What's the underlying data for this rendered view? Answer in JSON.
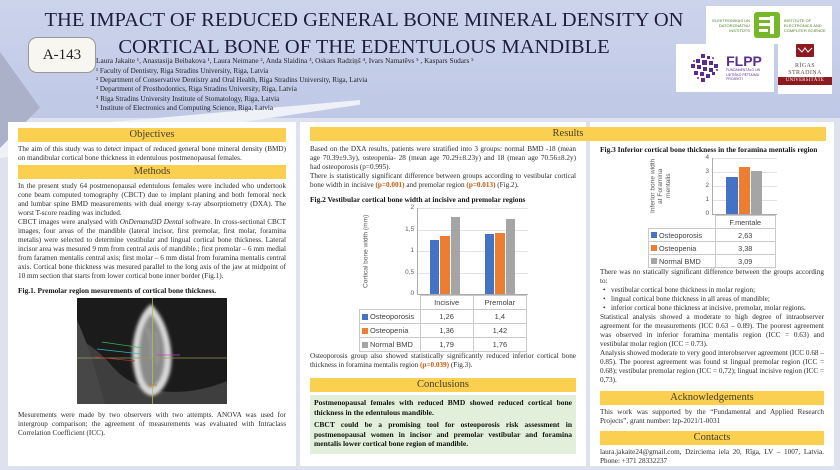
{
  "header": {
    "badge": "A-143",
    "title_line1": "THE IMPACT OF REDUCED GENERAL BONE MINERAL DENSITY ON",
    "title_line2": "CORTICAL BONE OF THE EDENTULOUS MANDIBLE",
    "authors": "Laura Jakaite ¹, Anastasija Beibakova ¹, Laura Neimane ², Anda Slaidina ³, Oskars Radziņš ⁴, Ivars Namatēvs ⁵ , Kaspars Sudars ⁵",
    "affiliations": [
      "¹ Faculty of Dentistry, Riga Stradins University, Riga, Latvia",
      "² Department of Conservative Dentistry and Oral Health, Riga Stradins University, Riga, Latvia",
      "³ Department of Prosthodontics, Riga Stradins University, Riga, Latvia",
      "⁴ Riga Stradins University Institute of Stomatology, Riga, Latvia",
      "⁵ Institute of Electronics and Computing Science, Riga, Latvia"
    ],
    "logos": {
      "edi_left": [
        "ELEKTRONIKAS UN",
        "DATORZINĀTŅU",
        "INSTITŪTS"
      ],
      "edi_right": [
        "INSTITUTE OF",
        "ELECTRONICS AND",
        "COMPUTER SCIENCE"
      ],
      "flpp": "FLPP",
      "flpp_sub": [
        "FUNDAMENTĀLO UN",
        "LIETIŠĶO PĒTĪJUMU",
        "PROJEKTI"
      ],
      "rsu": [
        "RĪGAS",
        "STRADIŅA",
        "UNIVERSITĀTE"
      ]
    }
  },
  "sections": {
    "objectives": "Objectives",
    "methods": "Methods",
    "results": "Results",
    "conclusions": "Conclusions",
    "acknowledgements": "Acknowledgements",
    "contacts": "Contacts"
  },
  "objectives": {
    "text": "The aim of this study was to detect impact of reduced general bone mineral density (BMD) on mandibular cortical bone thickness in edentulous postmenopausal females."
  },
  "methods": {
    "p1": "In the present study 64 postmenopausal edentulous females were included who undertook cone beam computed tomography (CBCT) due to implant planing and both femoral neck and lumbar spine BMD measurements with dual energy x-ray absorptiometry (DXA). The worst T-score reading was included.",
    "p2_before": "CBCT images were analysed with ",
    "p2_italic": "OnDemand3D Dental",
    "p2_after": " software. In cross-sectional CBCT images, four areas of the mandible (lateral incisor, first premolar, first molar, foramina metalis) were selected to determine vestibular and lingual cortical bone thickness. Lateral incisor area was mesured 9 mm from central axis of mandible.; first premolar – 6 mm medial from faramen mentalis central axis; first molar – 6 mm distal from foramina mentalis central axis. Cortical bone thickness was mesured parallel to the long axis of the jaw at midpoint of 10 mm section that starts from lower cortical bone inner border (Fig.1).",
    "fig1_caption": "Fig.1. Premolar region mesurements of cortical bone thickness.",
    "fig1_note": "Mesurements were made by two observers with two attempts. ANOVA was used for intergroup comparison; the agreement of measurements was evaluated with Intraclass Correlation Coefficient  (ICC)."
  },
  "results": {
    "p1": "Based on the DXA results, patients were stratified into 3 groups: normal BMD -18 (mean age 70.39±9.3y), osteopenia- 28 (mean age 70.29±8.23y) and 18 (mean age 70.56±8.2y) had osteoporosis (p=0.995).",
    "p2_before": "There is statistically significant difference between groups according to vestibular cortical bone width in incisive ",
    "p2_pval1": "(p=0.001)",
    "p2_mid": " and  premolar region ",
    "p2_pval2": "(p=0.013)",
    "p2_end": " (Fig.2).",
    "fig2_caption": "Fig.2 Vestibular cortical bone width at incisive and premolar regions",
    "note_before": "Osteoporosis group also showed statistically significantly reduced inferior cortical bone thickness in foramina mentalis region ",
    "note_pval": "(p=0.039)",
    "note_end": " (Fig.3).",
    "fig3_caption": "Fig.3 Inferior cortical bone thickness in the foramina mentalis region",
    "no_diff_intro": "There was no statically significant difference between the groups according to:",
    "bullets": [
      "vestibular cortical bone thickness in molar region;",
      "lingual cortical bone thickness in all areas of mandible;",
      "inferior cortical bone thickness at incisive, premolar, molar regions."
    ],
    "stats_p1": "Statistical analysis showed a moderate to high degree of intraobserver agreement for the measurements (ICC 0.63 – 0.89).  The poorest agreement was observed in inferior foramina mentalis region (ICC = 0.63) and vestibular molar region (ICC = 0.73).",
    "stats_p2": "Analysis showed moderate to very good interobserver agreement (ICC 0.68 – 0.85). The poorest agreement was found st lingual premolar region (ICC = 0.68); vestibular premolar region (ICC = 0,72); lingual incisive region (ICC = 0,73)."
  },
  "conclusions": {
    "line1": "Postmenopausal females with reduced BMD showed reduced cortical bone thickness in the edentulous mandible.",
    "line2": "CBCT could be a promising tool for osteoporosis risk assessment in postmenopausal women in incisor and premolar vestibular and foramina mentalis lower cortical bone region of mandible."
  },
  "acknowledgements": {
    "text": "This work was supported by the “Fundamental and Applied Research Projects”, grant number: lzp-2021/1-0031"
  },
  "contacts": {
    "text": "laura.jakaite24@gmail.com, Dzirciema iela 20, Rīga, LV – 1007, Latvia. Phone: +371 28332237"
  },
  "colors": {
    "accent_yellow": "#FBCF50",
    "p_value": "#C55A11",
    "conclusion_bg": "#E2EFDA",
    "bar_blue": "#4472C4",
    "bar_orange": "#ED7D31",
    "bar_gray": "#A5A5A5"
  },
  "chart_data": [
    {
      "type": "bar",
      "title": "Fig.2 Vestibular cortical bone width at incisive and premolar regions",
      "categories": [
        "Incisive",
        "Premolar"
      ],
      "series": [
        {
          "name": "Osteoporosis",
          "color": "#4472C4",
          "values": [
            1.26,
            1.4
          ],
          "labels": [
            "1,26",
            "1,4"
          ]
        },
        {
          "name": "Osteopenia",
          "color": "#ED7D31",
          "values": [
            1.36,
            1.42
          ],
          "labels": [
            "1,36",
            "1,42"
          ]
        },
        {
          "name": "Normal BMD",
          "color": "#A5A5A5",
          "values": [
            1.79,
            1.76
          ],
          "labels": [
            "1,79",
            "1,76"
          ]
        }
      ],
      "xlabel": "",
      "ylabel": "Cortical bone width (mm)",
      "ylim": [
        0,
        2
      ],
      "yticks": [
        {
          "v": 0,
          "label": "0"
        },
        {
          "v": 0.5,
          "label": "0,5"
        },
        {
          "v": 1,
          "label": "1"
        },
        {
          "v": 1.5,
          "label": "1,5"
        },
        {
          "v": 2,
          "label": "2"
        }
      ],
      "grid": true,
      "legend_position": "table-bottom"
    },
    {
      "type": "bar",
      "title": "Fig.3 Inferior cortical bone thickness in the foramina mentalis region",
      "categories": [
        "F.mentale"
      ],
      "series": [
        {
          "name": "Osteoporosis",
          "color": "#4472C4",
          "values": [
            2.63
          ],
          "labels": [
            "2,63"
          ]
        },
        {
          "name": "Osteopenia",
          "color": "#ED7D31",
          "values": [
            3.38
          ],
          "labels": [
            "3,38"
          ]
        },
        {
          "name": "Normal BMD",
          "color": "#A5A5A5",
          "values": [
            3.09
          ],
          "labels": [
            "3,09"
          ]
        }
      ],
      "xlabel": "",
      "ylabel": "Inferior bone width at Foramina mentalis",
      "ylim": [
        0,
        4
      ],
      "yticks": [
        {
          "v": 0,
          "label": "0"
        },
        {
          "v": 1,
          "label": "1"
        },
        {
          "v": 2,
          "label": "2"
        },
        {
          "v": 3,
          "label": "3"
        },
        {
          "v": 4,
          "label": "4"
        }
      ],
      "grid": true,
      "legend_position": "table-bottom"
    }
  ]
}
